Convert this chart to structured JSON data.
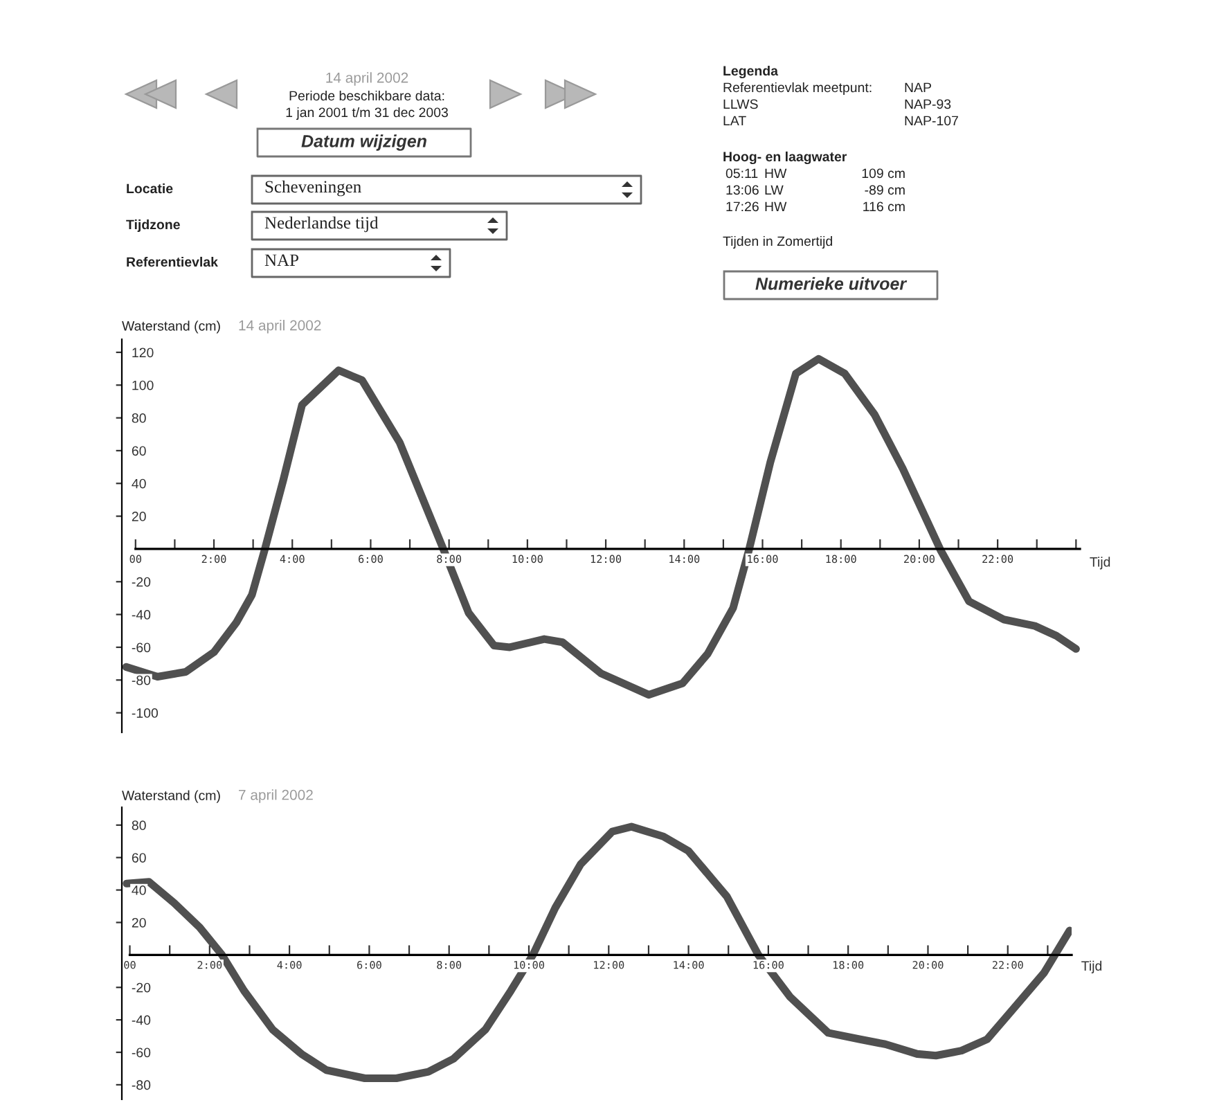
{
  "chart_data": [
    {
      "type": "other",
      "annotations": [
        "14 april 2002",
        "Periode beschikbare data:",
        "1 jan 2001 t/m 31 dec 2003",
        "Datum wijzigen",
        "Locatie",
        "Scheveningen",
        "Tijdzone",
        "Nederlandse tijd",
        "Referentievlak",
        "NAP",
        "Legenda",
        "Referentievlak meetpunt:",
        "NAP",
        "LLWS",
        "NAP-93",
        "LAT",
        "NAP-107",
        "Hoog- en laagwater",
        "05:11",
        "HW",
        "109 cm",
        "13:06",
        "LW",
        "-89 cm",
        "17:26",
        "HW",
        "116 cm",
        "Tijden in Zomertijd",
        "Numerieke uitvoer"
      ]
    },
    {
      "type": "line",
      "title": "14 april 2002",
      "ylabel": "Waterstand (cm)",
      "xlabel": "Tijd",
      "xlim": [
        -0.35,
        24.1
      ],
      "ylim": [
        -112,
        128
      ],
      "xticks": [
        {
          "value": 0,
          "label": "00"
        },
        {
          "value": 1,
          "label": null
        },
        {
          "value": 2,
          "label": "2:00"
        },
        {
          "value": 3,
          "label": null
        },
        {
          "value": 4,
          "label": "4:00"
        },
        {
          "value": 5,
          "label": null
        },
        {
          "value": 6,
          "label": "6:00"
        },
        {
          "value": 7,
          "label": null
        },
        {
          "value": 8,
          "label": "8:00"
        },
        {
          "value": 9,
          "label": null
        },
        {
          "value": 10,
          "label": "10:00"
        },
        {
          "value": 11,
          "label": null
        },
        {
          "value": 12,
          "label": "12:00"
        },
        {
          "value": 13,
          "label": null
        },
        {
          "value": 14,
          "label": "14:00"
        },
        {
          "value": 15,
          "label": null
        },
        {
          "value": 16,
          "label": "16:00"
        },
        {
          "value": 17,
          "label": null
        },
        {
          "value": 18,
          "label": "18:00"
        },
        {
          "value": 19,
          "label": null
        },
        {
          "value": 20,
          "label": "20:00"
        },
        {
          "value": 21,
          "label": null
        },
        {
          "value": 22,
          "label": "22:00"
        },
        {
          "value": 23,
          "label": null
        },
        {
          "value": 24,
          "label": null
        }
      ],
      "yticks": [
        120,
        100,
        80,
        60,
        40,
        20,
        -20,
        -40,
        -60,
        -80,
        -100
      ],
      "grid": false,
      "line_style": "solid",
      "marker": "none",
      "series": [
        {
          "color": "#505050",
          "x": [
            -0.24,
            0.56,
            1.28,
            2.0,
            2.57,
            2.97,
            3.29,
            3.77,
            4.25,
            5.18,
            5.78,
            6.74,
            7.87,
            8.5,
            9.15,
            9.55,
            10.43,
            10.9,
            11.88,
            13.1,
            13.96,
            14.6,
            15.25,
            15.65,
            16.2,
            16.85,
            17.43,
            18.1,
            18.86,
            19.58,
            20.55,
            21.27,
            22.15,
            22.95,
            23.5,
            24.0
          ],
          "values": [
            -72,
            -78,
            -75,
            -63,
            -45,
            -28,
            -1,
            42,
            88,
            109,
            103,
            65,
            -1,
            -39,
            -59,
            -60,
            -55,
            -57,
            -76,
            -89,
            -82,
            -64,
            -36,
            -1,
            53,
            107,
            116,
            107,
            82,
            49,
            -1,
            -32,
            -43,
            -47,
            -53,
            -61
          ]
        }
      ]
    },
    {
      "type": "line",
      "title": "7 april 2002",
      "ylabel": "Waterstand (cm)",
      "xlabel": "Tijd",
      "xlim": [
        -0.2,
        23.6
      ],
      "ylim": [
        -89,
        91
      ],
      "xticks": [
        {
          "value": 0,
          "label": "00"
        },
        {
          "value": 1,
          "label": null
        },
        {
          "value": 2,
          "label": "2:00"
        },
        {
          "value": 3,
          "label": null
        },
        {
          "value": 4,
          "label": "4:00"
        },
        {
          "value": 5,
          "label": null
        },
        {
          "value": 6,
          "label": "6:00"
        },
        {
          "value": 7,
          "label": null
        },
        {
          "value": 8,
          "label": "8:00"
        },
        {
          "value": 9,
          "label": null
        },
        {
          "value": 10,
          "label": "10:00"
        },
        {
          "value": 11,
          "label": null
        },
        {
          "value": 12,
          "label": "12:00"
        },
        {
          "value": 13,
          "label": null
        },
        {
          "value": 14,
          "label": "14:00"
        },
        {
          "value": 15,
          "label": null
        },
        {
          "value": 16,
          "label": "16:00"
        },
        {
          "value": 17,
          "label": null
        },
        {
          "value": 18,
          "label": "18:00"
        },
        {
          "value": 19,
          "label": null
        },
        {
          "value": 20,
          "label": "20:00"
        },
        {
          "value": 21,
          "label": null
        },
        {
          "value": 22,
          "label": "22:00"
        },
        {
          "value": 23,
          "label": null
        }
      ],
      "yticks": [
        80,
        60,
        40,
        20,
        -20,
        -40,
        -60,
        -80
      ],
      "grid": false,
      "line_style": "solid",
      "marker": "none",
      "series": [
        {
          "color": "#505050",
          "x": [
            -0.08,
            0.48,
            1.11,
            1.75,
            2.31,
            2.86,
            3.58,
            4.3,
            4.93,
            5.89,
            6.68,
            7.48,
            8.11,
            8.91,
            9.55,
            10.1,
            10.66,
            11.3,
            12.09,
            12.57,
            13.37,
            14.0,
            14.96,
            15.75,
            16.55,
            17.5,
            18.3,
            18.93,
            19.73,
            20.2,
            20.84,
            21.48,
            22.11,
            22.91,
            23.55
          ],
          "values": [
            44,
            45,
            32,
            17,
            0,
            -22,
            -46,
            -61,
            -71,
            -76,
            -76,
            -72,
            -64,
            -46,
            -22,
            0,
            29,
            56,
            76,
            79,
            73,
            64,
            36,
            0,
            -26,
            -48,
            -52,
            -55,
            -61,
            -62,
            -59,
            -52,
            -34,
            -11,
            15
          ]
        }
      ]
    }
  ]
}
